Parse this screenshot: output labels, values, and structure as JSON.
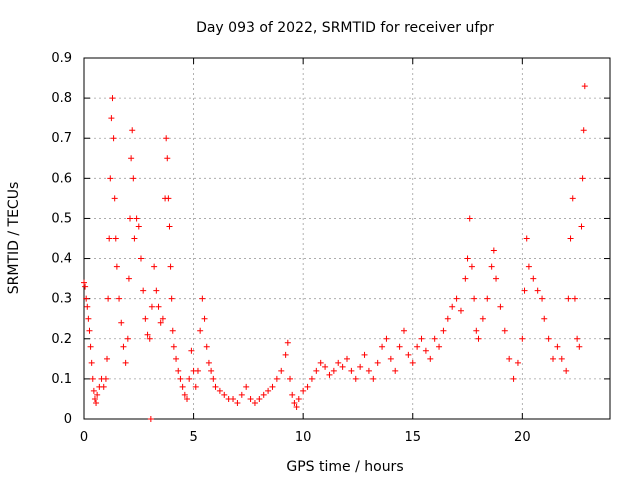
{
  "chart_data": {
    "type": "scatter",
    "title": "Day 093 of 2022, SRMTID for receiver ufpr",
    "xlabel": "GPS time / hours",
    "ylabel": "SRMTID / TECUs",
    "xlim": [
      0,
      24
    ],
    "ylim": [
      0,
      0.9
    ],
    "xticks": [
      0,
      5,
      10,
      15,
      20
    ],
    "yticks": [
      0,
      0.1,
      0.2,
      0.3,
      0.4,
      0.5,
      0.6,
      0.7,
      0.8,
      0.9
    ],
    "xtick_labels": [
      "0",
      "5",
      "10",
      "15",
      "20"
    ],
    "ytick_labels": [
      "0",
      "0.1",
      "0.2",
      "0.3",
      "0.4",
      "0.5",
      "0.6",
      "0.7",
      "0.8",
      "0.9"
    ],
    "grid": true,
    "marker": "+",
    "color": "#ff0000",
    "series": [
      {
        "name": "SRMTID",
        "points": [
          [
            0.0,
            0.34
          ],
          [
            0.05,
            0.33
          ],
          [
            0.1,
            0.3
          ],
          [
            0.15,
            0.28
          ],
          [
            0.2,
            0.25
          ],
          [
            0.25,
            0.22
          ],
          [
            0.3,
            0.18
          ],
          [
            0.35,
            0.14
          ],
          [
            0.4,
            0.1
          ],
          [
            0.45,
            0.07
          ],
          [
            0.5,
            0.05
          ],
          [
            0.55,
            0.04
          ],
          [
            0.6,
            0.06
          ],
          [
            0.7,
            0.08
          ],
          [
            0.8,
            0.1
          ],
          [
            0.9,
            0.08
          ],
          [
            1.0,
            0.1
          ],
          [
            1.05,
            0.15
          ],
          [
            1.1,
            0.3
          ],
          [
            1.15,
            0.45
          ],
          [
            1.2,
            0.6
          ],
          [
            1.25,
            0.75
          ],
          [
            1.3,
            0.8
          ],
          [
            1.35,
            0.7
          ],
          [
            1.4,
            0.55
          ],
          [
            1.45,
            0.45
          ],
          [
            1.5,
            0.38
          ],
          [
            1.6,
            0.3
          ],
          [
            1.7,
            0.24
          ],
          [
            1.8,
            0.18
          ],
          [
            1.9,
            0.14
          ],
          [
            2.0,
            0.2
          ],
          [
            2.05,
            0.35
          ],
          [
            2.1,
            0.5
          ],
          [
            2.15,
            0.65
          ],
          [
            2.2,
            0.72
          ],
          [
            2.25,
            0.6
          ],
          [
            2.3,
            0.45
          ],
          [
            2.4,
            0.5
          ],
          [
            2.5,
            0.48
          ],
          [
            2.6,
            0.4
          ],
          [
            2.7,
            0.32
          ],
          [
            2.8,
            0.25
          ],
          [
            2.9,
            0.21
          ],
          [
            3.0,
            0.2
          ],
          [
            3.05,
            0.0
          ],
          [
            3.1,
            0.28
          ],
          [
            3.2,
            0.38
          ],
          [
            3.3,
            0.32
          ],
          [
            3.4,
            0.28
          ],
          [
            3.5,
            0.24
          ],
          [
            3.6,
            0.25
          ],
          [
            3.7,
            0.55
          ],
          [
            3.75,
            0.7
          ],
          [
            3.8,
            0.65
          ],
          [
            3.85,
            0.55
          ],
          [
            3.9,
            0.48
          ],
          [
            3.95,
            0.38
          ],
          [
            4.0,
            0.3
          ],
          [
            4.05,
            0.22
          ],
          [
            4.1,
            0.18
          ],
          [
            4.2,
            0.15
          ],
          [
            4.3,
            0.12
          ],
          [
            4.4,
            0.1
          ],
          [
            4.5,
            0.08
          ],
          [
            4.6,
            0.06
          ],
          [
            4.7,
            0.05
          ],
          [
            4.8,
            0.1
          ],
          [
            4.9,
            0.17
          ],
          [
            5.0,
            0.12
          ],
          [
            5.1,
            0.08
          ],
          [
            5.2,
            0.12
          ],
          [
            5.3,
            0.22
          ],
          [
            5.4,
            0.3
          ],
          [
            5.5,
            0.25
          ],
          [
            5.6,
            0.18
          ],
          [
            5.7,
            0.14
          ],
          [
            5.8,
            0.12
          ],
          [
            5.9,
            0.1
          ],
          [
            6.0,
            0.08
          ],
          [
            6.2,
            0.07
          ],
          [
            6.4,
            0.06
          ],
          [
            6.6,
            0.05
          ],
          [
            6.8,
            0.05
          ],
          [
            7.0,
            0.04
          ],
          [
            7.2,
            0.06
          ],
          [
            7.4,
            0.08
          ],
          [
            7.6,
            0.05
          ],
          [
            7.8,
            0.04
          ],
          [
            8.0,
            0.05
          ],
          [
            8.2,
            0.06
          ],
          [
            8.4,
            0.07
          ],
          [
            8.6,
            0.08
          ],
          [
            8.8,
            0.1
          ],
          [
            9.0,
            0.12
          ],
          [
            9.2,
            0.16
          ],
          [
            9.3,
            0.19
          ],
          [
            9.4,
            0.1
          ],
          [
            9.5,
            0.06
          ],
          [
            9.6,
            0.04
          ],
          [
            9.7,
            0.03
          ],
          [
            9.8,
            0.05
          ],
          [
            10.0,
            0.07
          ],
          [
            10.2,
            0.08
          ],
          [
            10.4,
            0.1
          ],
          [
            10.6,
            0.12
          ],
          [
            10.8,
            0.14
          ],
          [
            11.0,
            0.13
          ],
          [
            11.2,
            0.11
          ],
          [
            11.4,
            0.12
          ],
          [
            11.6,
            0.14
          ],
          [
            11.8,
            0.13
          ],
          [
            12.0,
            0.15
          ],
          [
            12.2,
            0.12
          ],
          [
            12.4,
            0.1
          ],
          [
            12.6,
            0.13
          ],
          [
            12.8,
            0.16
          ],
          [
            13.0,
            0.12
          ],
          [
            13.2,
            0.1
          ],
          [
            13.4,
            0.14
          ],
          [
            13.6,
            0.18
          ],
          [
            13.8,
            0.2
          ],
          [
            14.0,
            0.15
          ],
          [
            14.2,
            0.12
          ],
          [
            14.4,
            0.18
          ],
          [
            14.6,
            0.22
          ],
          [
            14.8,
            0.16
          ],
          [
            15.0,
            0.14
          ],
          [
            15.2,
            0.18
          ],
          [
            15.4,
            0.2
          ],
          [
            15.6,
            0.17
          ],
          [
            15.8,
            0.15
          ],
          [
            16.0,
            0.2
          ],
          [
            16.2,
            0.18
          ],
          [
            16.4,
            0.22
          ],
          [
            16.6,
            0.25
          ],
          [
            16.8,
            0.28
          ],
          [
            17.0,
            0.3
          ],
          [
            17.2,
            0.27
          ],
          [
            17.4,
            0.35
          ],
          [
            17.5,
            0.4
          ],
          [
            17.6,
            0.5
          ],
          [
            17.7,
            0.38
          ],
          [
            17.8,
            0.3
          ],
          [
            17.9,
            0.22
          ],
          [
            18.0,
            0.2
          ],
          [
            18.2,
            0.25
          ],
          [
            18.4,
            0.3
          ],
          [
            18.6,
            0.38
          ],
          [
            18.7,
            0.42
          ],
          [
            18.8,
            0.35
          ],
          [
            19.0,
            0.28
          ],
          [
            19.2,
            0.22
          ],
          [
            19.4,
            0.15
          ],
          [
            19.6,
            0.1
          ],
          [
            19.8,
            0.14
          ],
          [
            20.0,
            0.2
          ],
          [
            20.1,
            0.32
          ],
          [
            20.2,
            0.45
          ],
          [
            20.3,
            0.38
          ],
          [
            20.5,
            0.35
          ],
          [
            20.7,
            0.32
          ],
          [
            20.9,
            0.3
          ],
          [
            21.0,
            0.25
          ],
          [
            21.2,
            0.2
          ],
          [
            21.4,
            0.15
          ],
          [
            21.6,
            0.18
          ],
          [
            21.8,
            0.15
          ],
          [
            22.0,
            0.12
          ],
          [
            22.1,
            0.3
          ],
          [
            22.2,
            0.45
          ],
          [
            22.3,
            0.55
          ],
          [
            22.4,
            0.3
          ],
          [
            22.5,
            0.2
          ],
          [
            22.6,
            0.18
          ],
          [
            22.7,
            0.48
          ],
          [
            22.75,
            0.6
          ],
          [
            22.8,
            0.72
          ],
          [
            22.85,
            0.83
          ]
        ]
      }
    ]
  }
}
